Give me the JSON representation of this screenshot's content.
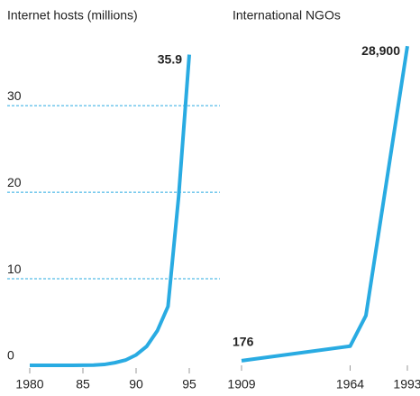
{
  "chart_data": [
    {
      "type": "line",
      "title": "Internet hosts (millions)",
      "x": [
        1980,
        1981,
        1982,
        1983,
        1984,
        1985,
        1986,
        1987,
        1988,
        1989,
        1990,
        1991,
        1992,
        1993,
        1994,
        1995
      ],
      "series": [
        {
          "name": "Internet hosts",
          "color": "#29abe2",
          "values": [
            0,
            0,
            0,
            0,
            0,
            0.01,
            0.03,
            0.1,
            0.3,
            0.6,
            1.2,
            2.2,
            4.0,
            6.8,
            19.5,
            35.9
          ],
          "value_labels": [
            null,
            null,
            null,
            null,
            null,
            null,
            null,
            null,
            null,
            null,
            null,
            null,
            null,
            null,
            null,
            "35.9"
          ]
        }
      ],
      "xlim": [
        1980,
        1995
      ],
      "xticks": [
        1980,
        {
          "value": 1985,
          "label": "85"
        },
        {
          "value": 1990,
          "label": "90"
        },
        {
          "value": 1995,
          "label": "95"
        }
      ],
      "ylim": [
        0,
        37
      ],
      "yticks": [
        0,
        10,
        20,
        30
      ],
      "grid": true
    },
    {
      "type": "line",
      "title": "International NGOs",
      "x": [
        1909,
        1964,
        1972,
        1993
      ],
      "series": [
        {
          "name": "International NGOs",
          "color": "#29abe2",
          "values": [
            176,
            1500,
            4300,
            28900
          ],
          "value_labels": [
            "176",
            null,
            null,
            "28,900"
          ]
        }
      ],
      "xlim": [
        1909,
        1993
      ],
      "xticks": [
        1909,
        1964,
        1993
      ],
      "ylim": [
        0,
        29000
      ]
    }
  ]
}
